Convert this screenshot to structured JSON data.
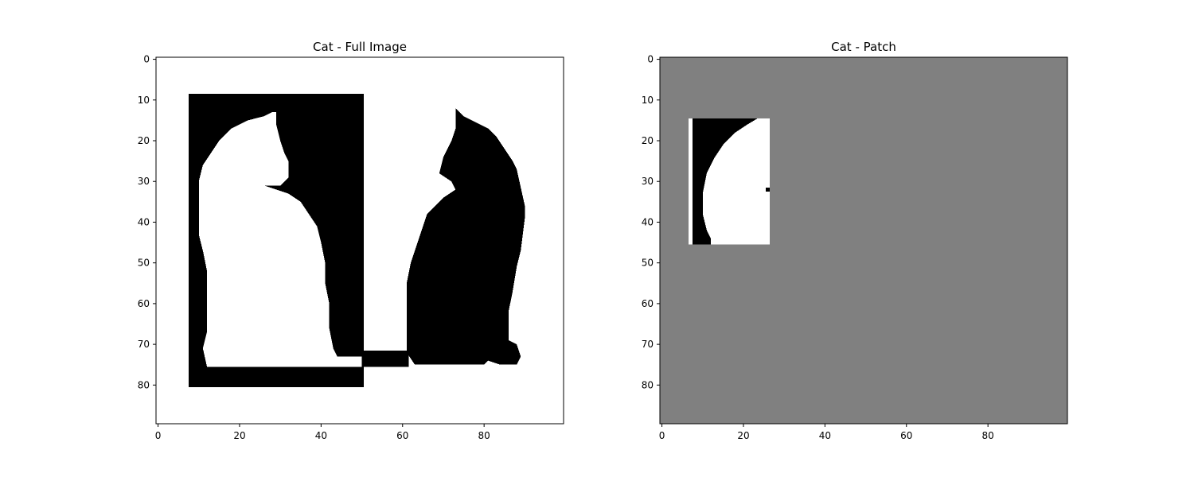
{
  "chart_data": [
    {
      "type": "heatmap",
      "title": "Cat - Full Image",
      "xlabel": "",
      "ylabel": "",
      "xlim": [
        -0.5,
        99.5
      ],
      "ylim": [
        89.5,
        -0.5
      ],
      "xticks": [
        0,
        20,
        40,
        60,
        80
      ],
      "yticks": [
        0,
        10,
        20,
        30,
        40,
        50,
        60,
        70,
        80
      ],
      "colormap": "gray",
      "background_color": "#ffffff",
      "regions": [
        {
          "value": "black",
          "color": "#000000",
          "x_range": [
            7.5,
            50.5
          ],
          "y_range": [
            8.5,
            80.5
          ],
          "label": "black box behind white cat"
        },
        {
          "value": "white",
          "color": "#ffffff",
          "polygon": [
            [
              28,
              13
            ],
            [
              29,
              13
            ],
            [
              29,
              16
            ],
            [
              30,
              20
            ],
            [
              31,
              23
            ],
            [
              32,
              25
            ],
            [
              32,
              29
            ],
            [
              30,
              31
            ],
            [
              26,
              31
            ],
            [
              29,
              32
            ],
            [
              32,
              33
            ],
            [
              35,
              35
            ],
            [
              37,
              38
            ],
            [
              39,
              41
            ],
            [
              40,
              45
            ],
            [
              41,
              50
            ],
            [
              41,
              55
            ],
            [
              42,
              60
            ],
            [
              42,
              66
            ],
            [
              43,
              71
            ],
            [
              44,
              73
            ],
            [
              50,
              73
            ],
            [
              50,
              75.5
            ],
            [
              12,
              75.5
            ],
            [
              11,
              71
            ],
            [
              12,
              67
            ],
            [
              12,
              60
            ],
            [
              12,
              52
            ],
            [
              11,
              47
            ],
            [
              10,
              43
            ],
            [
              10,
              37
            ],
            [
              10,
              30
            ],
            [
              11,
              26
            ],
            [
              13,
              23
            ],
            [
              15,
              20
            ],
            [
              18,
              17
            ],
            [
              22,
              15
            ],
            [
              26,
              14
            ]
          ],
          "label": "white cat"
        },
        {
          "value": "black",
          "color": "#000000",
          "polygon": [
            [
              73,
              12
            ],
            [
              74,
              13
            ],
            [
              75,
              14
            ],
            [
              77,
              15
            ],
            [
              79,
              16
            ],
            [
              81,
              17
            ],
            [
              83,
              19
            ],
            [
              85,
              22
            ],
            [
              87,
              25
            ],
            [
              88,
              27
            ],
            [
              90,
              36
            ],
            [
              90,
              39
            ],
            [
              89,
              47
            ],
            [
              88,
              51
            ],
            [
              87,
              57
            ],
            [
              86,
              62
            ],
            [
              86,
              69
            ],
            [
              88,
              70
            ],
            [
              89,
              73
            ],
            [
              88,
              75
            ],
            [
              84,
              75
            ],
            [
              81,
              74
            ],
            [
              80,
              75
            ],
            [
              63,
              75
            ],
            [
              61,
              72
            ],
            [
              61,
              55
            ],
            [
              62,
              50
            ],
            [
              64,
              44
            ],
            [
              66,
              38
            ],
            [
              70,
              34
            ],
            [
              73,
              32
            ],
            [
              72,
              30
            ],
            [
              69,
              28
            ],
            [
              70,
              24
            ],
            [
              72,
              20
            ],
            [
              73,
              17
            ]
          ],
          "label": "black cat"
        },
        {
          "value": "black",
          "color": "#000000",
          "x_range": [
            50.5,
            61.5
          ],
          "y_range": [
            71.5,
            75.5
          ],
          "label": "ground strip"
        }
      ]
    },
    {
      "type": "heatmap",
      "title": "Cat - Patch",
      "xlabel": "",
      "ylabel": "",
      "xlim": [
        -0.5,
        99.5
      ],
      "ylim": [
        89.5,
        -0.5
      ],
      "xticks": [
        0,
        20,
        40,
        60,
        80
      ],
      "yticks": [
        0,
        10,
        20,
        30,
        40,
        50,
        60,
        70,
        80
      ],
      "colormap": "gray",
      "background_color": "#808080",
      "patch": {
        "x_range": [
          6.5,
          26.5
        ],
        "y_range": [
          14.5,
          45.5
        ]
      },
      "regions": [
        {
          "value": "white",
          "color": "#ffffff",
          "x_range": [
            6.5,
            26.5
          ],
          "y_range": [
            14.5,
            45.5
          ]
        },
        {
          "value": "black",
          "color": "#000000",
          "polygon": [
            [
              7.5,
              14.5
            ],
            [
              23.5,
              14.5
            ],
            [
              21,
              16
            ],
            [
              18,
              18
            ],
            [
              15,
              21
            ],
            [
              13,
              24
            ],
            [
              11,
              28
            ],
            [
              10,
              33
            ],
            [
              10,
              38
            ],
            [
              11,
              42
            ],
            [
              12,
              44
            ],
            [
              12,
              45.5
            ],
            [
              7.5,
              45.5
            ]
          ]
        },
        {
          "value": "black",
          "color": "#000000",
          "x_range": [
            25.5,
            26.5
          ],
          "y_range": [
            31.5,
            32.5
          ]
        }
      ]
    }
  ]
}
